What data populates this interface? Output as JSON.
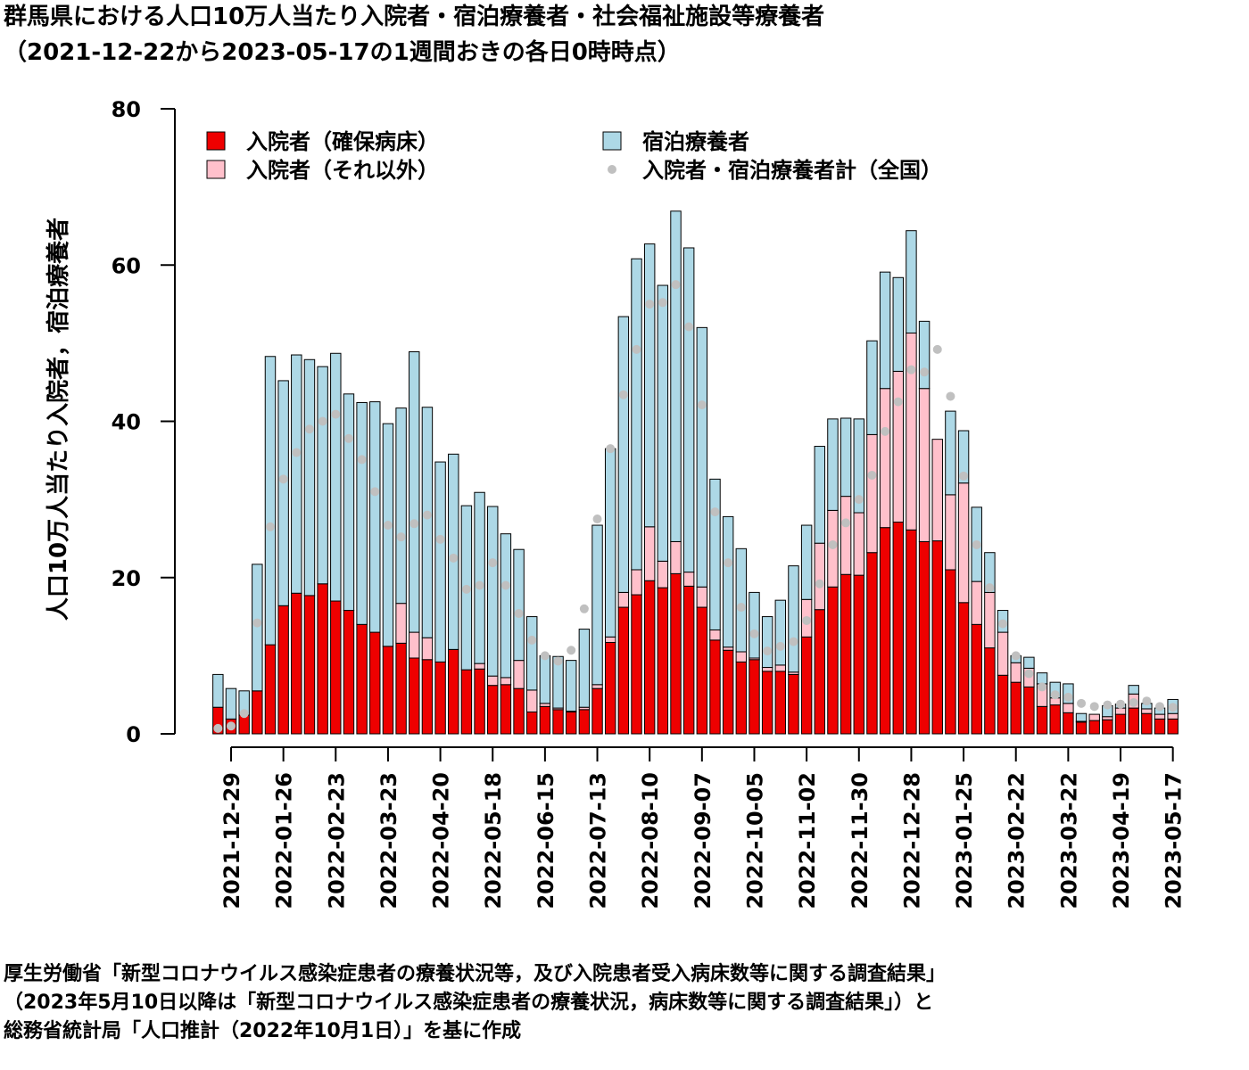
{
  "title_line1": "群馬県における人口10万人当たり入院者・宿泊療養者・社会福祉施設等療養者",
  "title_line2": "（2021-12-22から2023-05-17の1週間おきの各日0時時点）",
  "source_line1": "厚生労働省「新型コロナウイルス感染症患者の療養状況等，及び入院患者受入病床数等に関する調査結果」",
  "source_line2": "（2023年5月10日以降は「新型コロナウイルス感染症患者の療養状況，病床数等に関する調査結果」）と",
  "source_line3": "総務省統計局「人口推計（2022年10月1日）」を基に作成",
  "chart_data": {
    "type": "bar",
    "stacked": true,
    "ylabel": "人口10万人当たり入院者，宿泊療養者",
    "ylim": [
      0,
      80
    ],
    "yticks": [
      0,
      20,
      40,
      60,
      80
    ],
    "xticks": [
      "2021-12-29",
      "2022-01-26",
      "2022-02-23",
      "2022-03-23",
      "2022-04-20",
      "2022-05-18",
      "2022-06-15",
      "2022-07-13",
      "2022-08-10",
      "2022-09-07",
      "2022-10-05",
      "2022-11-02",
      "2022-11-30",
      "2022-12-28",
      "2023-01-25",
      "2023-02-22",
      "2023-03-22",
      "2023-04-19",
      "2023-05-17"
    ],
    "xtick_every": 4,
    "xtick_offset": 1,
    "legend": [
      {
        "label": "入院者（確保病床）",
        "color": "#ee0000",
        "kind": "box"
      },
      {
        "label": "入院者（それ以外）",
        "color": "#ffc0cb",
        "kind": "box"
      },
      {
        "label": "宿泊療養者",
        "color": "#add8e6",
        "kind": "box"
      },
      {
        "label": "入院者・宿泊療養者計（全国）",
        "color": "#c0c0c0",
        "kind": "point"
      }
    ],
    "series": [
      {
        "name": "入院者（確保病床）",
        "color": "#ee0000",
        "values": [
          3.4,
          1.9,
          2.4,
          5.5,
          11.4,
          16.4,
          18,
          17.7,
          19.2,
          17,
          15.8,
          14,
          13,
          11.2,
          11.6,
          9.7,
          9.5,
          9.2,
          10.8,
          8.2,
          8.3,
          6.2,
          6.3,
          5.8,
          2.8,
          3.5,
          3.1,
          2.8,
          3.1,
          5.8,
          11.7,
          16.2,
          17.8,
          19.6,
          18.7,
          20.5,
          18.9,
          16.2,
          12,
          10.7,
          9.2,
          9.5,
          8,
          8,
          7.6,
          12.4,
          15.9,
          18.8,
          20.4,
          20.3,
          23.2,
          26.4,
          27.1,
          26.1,
          24.6,
          24.7,
          21,
          16.8,
          14,
          11,
          7.5,
          6.6,
          6,
          3.5,
          3.7,
          2.7,
          1.5,
          1.7,
          1.8,
          2.5,
          3.3,
          2.6,
          1.9,
          1.9
        ]
      },
      {
        "name": "入院者（それ以外）",
        "color": "#ffc0cb",
        "values": [
          0,
          0,
          0,
          0,
          0,
          0,
          0,
          0,
          0,
          0,
          0,
          0,
          0,
          0,
          5.1,
          3.3,
          2.8,
          0,
          0,
          0,
          0.7,
          1.2,
          0.9,
          3.6,
          2.8,
          0.4,
          0.2,
          0.1,
          0.3,
          0.5,
          0.7,
          1.9,
          3.2,
          6.9,
          3.4,
          4.1,
          1.8,
          2.6,
          1.3,
          0.4,
          1.3,
          0.2,
          0.5,
          0.8,
          0.3,
          4.8,
          8.5,
          9.8,
          10,
          8,
          15.1,
          17.8,
          19.3,
          25.2,
          19.6,
          13,
          9.6,
          15.3,
          5.5,
          7.1,
          5.5,
          2.5,
          2.4,
          2.9,
          0.9,
          1.2,
          0.1,
          0.8,
          0.4,
          0.8,
          1.8,
          0.6,
          0.6,
          0.7
        ]
      },
      {
        "name": "宿泊療養者",
        "color": "#add8e6",
        "values": [
          4.2,
          3.9,
          3.1,
          16.2,
          36.9,
          28.8,
          30.5,
          30.2,
          27.8,
          31.7,
          27.7,
          28.4,
          29.5,
          28.5,
          25,
          35.9,
          29.5,
          25.6,
          25,
          21,
          21.9,
          21.7,
          18.4,
          14.2,
          9.4,
          6.1,
          6.6,
          6.5,
          10,
          20.4,
          24.1,
          35.3,
          39.8,
          36.2,
          35.3,
          42.3,
          41.5,
          33.2,
          19.3,
          16.7,
          13.2,
          8.4,
          6.5,
          8.3,
          13.6,
          9.5,
          12.4,
          11.7,
          10,
          12,
          12,
          14.9,
          12,
          13.1,
          8.6,
          0,
          10.7,
          6.7,
          9.5,
          5.1,
          2.8,
          0.9,
          1.4,
          1.4,
          2,
          2.5,
          1,
          0,
          1.4,
          0.5,
          1.1,
          0.7,
          0.8,
          1.8
        ]
      },
      {
        "name": "入院者・宿泊療養者計（全国）",
        "color": "#c0c0c0",
        "kind": "point",
        "values": [
          0.7,
          1,
          2.6,
          14.2,
          26.5,
          32.6,
          36,
          39,
          40,
          40.9,
          37.8,
          35.1,
          31,
          26.7,
          25.2,
          26.9,
          28,
          24.9,
          22.5,
          18.5,
          19,
          21.9,
          19,
          15.4,
          12,
          10,
          9.3,
          10.7,
          16,
          27.5,
          36.5,
          43.4,
          49.2,
          55,
          55.2,
          57.5,
          52.1,
          42.1,
          28.4,
          21.9,
          16.2,
          12.8,
          10.6,
          11.2,
          11.8,
          14.5,
          19.2,
          24.2,
          27,
          30,
          33.1,
          38.7,
          42.5,
          46.6,
          46.3,
          49.2,
          43.2,
          33,
          24.2,
          18.7,
          14.1,
          10,
          7.7,
          6,
          5,
          4.7,
          3.9,
          3.5,
          3.7,
          3.8,
          4,
          4.2,
          3.5,
          3.4
        ]
      }
    ]
  }
}
